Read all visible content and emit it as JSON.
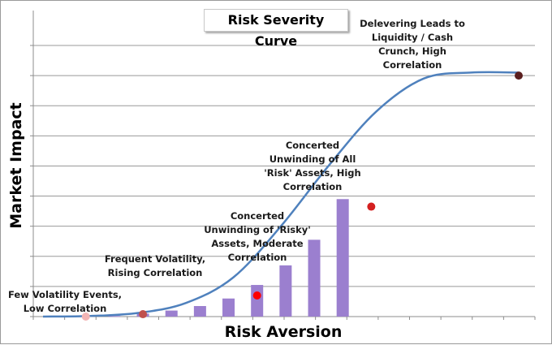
{
  "chart_data": {
    "type": "line",
    "title": "Risk Severity Curve",
    "xlabel": "Risk Aversion",
    "ylabel": "Market Impact",
    "xlim": [
      0,
      10
    ],
    "ylim": [
      0,
      9
    ],
    "grid": true,
    "curve": {
      "x": [
        0,
        1.0,
        2.0,
        3.0,
        4.0,
        5.0,
        6.0,
        7.0,
        8.0,
        9.0,
        10.0
      ],
      "y": [
        0,
        0.02,
        0.12,
        0.45,
        1.3,
        3.0,
        5.0,
        6.8,
        7.9,
        8.1,
        8.1
      ]
    },
    "bars": {
      "x": [
        1.5,
        2.1,
        2.7,
        3.3,
        3.9,
        4.5,
        5.1,
        5.7,
        6.3
      ],
      "values": [
        0.02,
        0.1,
        0.2,
        0.35,
        0.6,
        1.05,
        1.7,
        2.55,
        3.9
      ],
      "color": "#9b7fcf"
    },
    "points": [
      {
        "x": 0.9,
        "y": 0.0,
        "color": "#f2b5b5"
      },
      {
        "x": 2.1,
        "y": 0.08,
        "color": "#c0504d"
      },
      {
        "x": 4.5,
        "y": 0.7,
        "color": "#ff0000"
      },
      {
        "x": 6.9,
        "y": 3.65,
        "color": "#d42020"
      },
      {
        "x": 10.0,
        "y": 8.0,
        "color": "#5a1e1e"
      }
    ],
    "annotations": [
      "Few Volatility Events,\nLow Correlation",
      "Frequent Volatility,\nRising Correlation",
      "Concerted\nUnwinding of 'Risky'\nAssets, Moderate\nCorrelation",
      "Concerted\nUnwinding of All\n'Risk' Assets, High\nCorrelation",
      "Delevering Leads to\nLiquidity / Cash\nCrunch, High\nCorrelation"
    ],
    "colors": {
      "curve": "#4f81bd",
      "grid": "#999999"
    }
  }
}
